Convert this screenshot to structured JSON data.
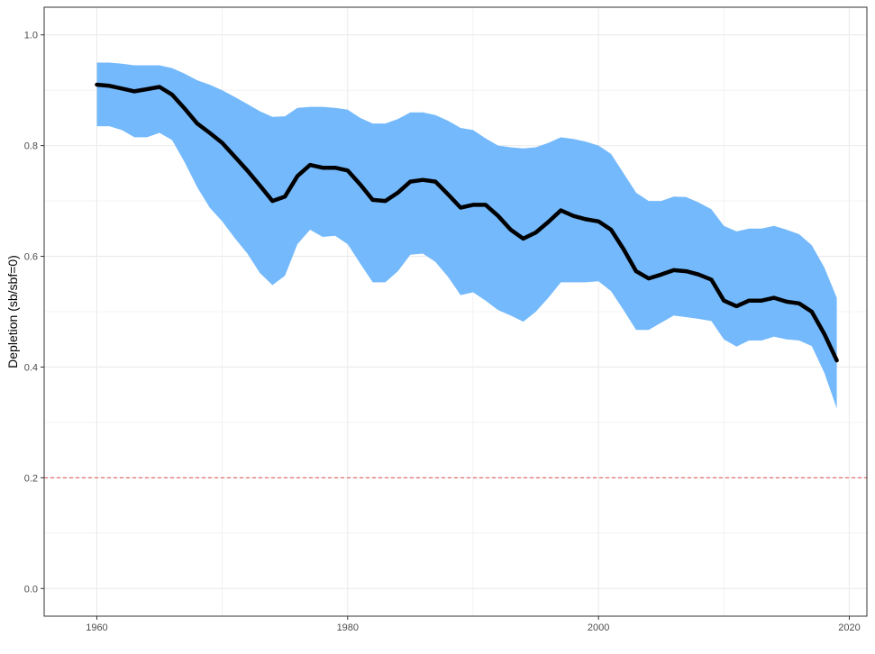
{
  "chart_data": {
    "type": "line",
    "title": "",
    "xlabel": "",
    "ylabel": "Depletion (sb/sbf=0)",
    "xlim": [
      1955.8,
      2021.4
    ],
    "ylim": [
      -0.05,
      1.05
    ],
    "xticks": [
      1960,
      1980,
      2000,
      2020
    ],
    "yticks": [
      0.0,
      0.2,
      0.4,
      0.6,
      0.8,
      1.0
    ],
    "xtick_labels": [
      "1960",
      "1980",
      "2000",
      "2020"
    ],
    "ytick_labels": [
      "0.0",
      "0.2",
      "0.4",
      "0.6",
      "0.8",
      "1.0"
    ],
    "grid": true,
    "legend": "none",
    "x": [
      1960,
      1961,
      1962,
      1963,
      1964,
      1965,
      1966,
      1967,
      1968,
      1969,
      1970,
      1971,
      1972,
      1973,
      1974,
      1975,
      1976,
      1977,
      1978,
      1979,
      1980,
      1981,
      1982,
      1983,
      1984,
      1985,
      1986,
      1987,
      1988,
      1989,
      1990,
      1991,
      1992,
      1993,
      1994,
      1995,
      1996,
      1997,
      1998,
      1999,
      2000,
      2001,
      2002,
      2003,
      2004,
      2005,
      2006,
      2007,
      2008,
      2009,
      2010,
      2011,
      2012,
      2013,
      2014,
      2015,
      2016,
      2017,
      2018,
      2019
    ],
    "series": [
      {
        "values": [
          0.91,
          0.908,
          0.903,
          0.898,
          0.902,
          0.906,
          0.892,
          0.867,
          0.84,
          0.823,
          0.805,
          0.78,
          0.755,
          0.728,
          0.7,
          0.708,
          0.745,
          0.765,
          0.76,
          0.76,
          0.755,
          0.73,
          0.702,
          0.7,
          0.715,
          0.735,
          0.738,
          0.735,
          0.712,
          0.688,
          0.693,
          0.693,
          0.673,
          0.648,
          0.632,
          0.643,
          0.662,
          0.683,
          0.673,
          0.667,
          0.663,
          0.648,
          0.613,
          0.573,
          0.56,
          0.567,
          0.575,
          0.573,
          0.567,
          0.558,
          0.52,
          0.51,
          0.52,
          0.52,
          0.525,
          0.518,
          0.515,
          0.5,
          0.46,
          0.412
        ],
        "lower": [
          0.835,
          0.835,
          0.828,
          0.815,
          0.815,
          0.823,
          0.81,
          0.77,
          0.725,
          0.688,
          0.663,
          0.633,
          0.605,
          0.57,
          0.548,
          0.565,
          0.622,
          0.648,
          0.635,
          0.637,
          0.622,
          0.587,
          0.553,
          0.553,
          0.573,
          0.603,
          0.605,
          0.59,
          0.563,
          0.53,
          0.535,
          0.52,
          0.503,
          0.493,
          0.482,
          0.5,
          0.525,
          0.553,
          0.553,
          0.553,
          0.555,
          0.537,
          0.503,
          0.467,
          0.467,
          0.48,
          0.493,
          0.49,
          0.487,
          0.483,
          0.45,
          0.437,
          0.448,
          0.448,
          0.455,
          0.45,
          0.448,
          0.438,
          0.39,
          0.325
        ],
        "upper": [
          0.95,
          0.95,
          0.948,
          0.945,
          0.945,
          0.945,
          0.94,
          0.93,
          0.918,
          0.91,
          0.9,
          0.888,
          0.875,
          0.862,
          0.852,
          0.853,
          0.868,
          0.87,
          0.87,
          0.868,
          0.865,
          0.85,
          0.84,
          0.84,
          0.848,
          0.86,
          0.86,
          0.855,
          0.845,
          0.832,
          0.828,
          0.813,
          0.8,
          0.797,
          0.795,
          0.797,
          0.805,
          0.815,
          0.812,
          0.807,
          0.8,
          0.785,
          0.75,
          0.715,
          0.7,
          0.7,
          0.708,
          0.707,
          0.697,
          0.685,
          0.655,
          0.645,
          0.65,
          0.65,
          0.655,
          0.648,
          0.64,
          0.62,
          0.58,
          0.525
        ]
      }
    ],
    "reference_line": {
      "y": 0.2,
      "style": "dashed",
      "color": "#d9534f"
    },
    "colors": {
      "band": "#74b9fb",
      "line": "#000000",
      "grid": "#ebebeb",
      "panel_border": "#333333",
      "tick_text": "#4d4d4d"
    }
  }
}
